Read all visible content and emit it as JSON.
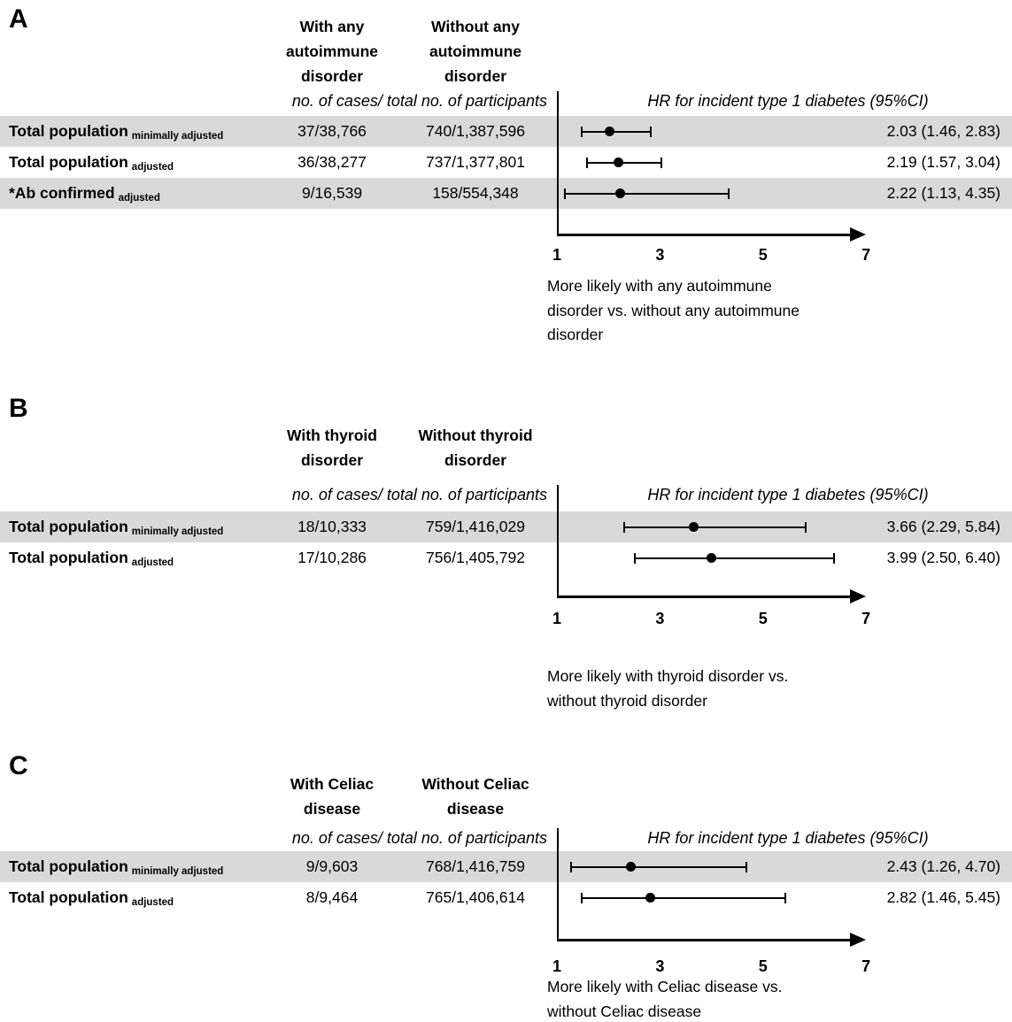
{
  "chart_data": {
    "type": "scatter",
    "subtype": "forest-plot",
    "x_axis": {
      "min": 1,
      "max": 7,
      "ticks": [
        "1",
        "3",
        "5",
        "7"
      ]
    },
    "colors": {
      "marker": "#000000",
      "shaded_row": "#d9d9d9",
      "text": "#000000"
    },
    "panels": [
      {
        "label": "A",
        "col_headers": [
          "With any\nautoimmune\ndisorder",
          "Without any\nautoimmune\ndisorder"
        ],
        "counts_header": "no. of cases/ total no. of participants",
        "hr_header": "HR for incident type 1 diabetes (95%CI)",
        "rows": [
          {
            "label": "Total population",
            "sub": "minimally adjusted",
            "cases_with": "37/38,766",
            "cases_without": "740/1,387,596",
            "hr": 2.03,
            "ci_low": 1.46,
            "ci_high": 2.83,
            "hr_text": "2.03 (1.46, 2.83)",
            "shaded": true
          },
          {
            "label": "Total population",
            "sub": "adjusted",
            "cases_with": "36/38,277",
            "cases_without": "737/1,377,801",
            "hr": 2.19,
            "ci_low": 1.57,
            "ci_high": 3.04,
            "hr_text": "2.19 (1.57, 3.04)",
            "shaded": false
          },
          {
            "label": "*Ab confirmed",
            "sub": "adjusted",
            "cases_with": "9/16,539",
            "cases_without": "158/554,348",
            "hr": 2.22,
            "ci_low": 1.13,
            "ci_high": 4.35,
            "hr_text": "2.22 (1.13, 4.35)",
            "shaded": true
          }
        ],
        "caption": "More likely with any autoimmune\ndisorder vs. without any autoimmune\ndisorder"
      },
      {
        "label": "B",
        "col_headers": [
          "With thyroid\ndisorder",
          "Without thyroid\ndisorder"
        ],
        "counts_header": "no. of cases/ total no. of participants",
        "hr_header": "HR for incident type 1 diabetes (95%CI)",
        "rows": [
          {
            "label": "Total population",
            "sub": "minimally adjusted",
            "cases_with": "18/10,333",
            "cases_without": "759/1,416,029",
            "hr": 3.66,
            "ci_low": 2.29,
            "ci_high": 5.84,
            "hr_text": "3.66 (2.29, 5.84)",
            "shaded": true
          },
          {
            "label": "Total population",
            "sub": "adjusted",
            "cases_with": "17/10,286",
            "cases_without": "756/1,405,792",
            "hr": 3.99,
            "ci_low": 2.5,
            "ci_high": 6.4,
            "hr_text": "3.99 (2.50, 6.40)",
            "shaded": false
          }
        ],
        "caption": "More likely with thyroid disorder vs.\nwithout thyroid disorder"
      },
      {
        "label": "C",
        "col_headers": [
          "With Celiac\ndisease",
          "Without Celiac\ndisease"
        ],
        "counts_header": "no. of cases/ total no. of participants",
        "hr_header": "HR for incident type 1 diabetes (95%CI)",
        "rows": [
          {
            "label": "Total population",
            "sub": "minimally adjusted",
            "cases_with": "9/9,603",
            "cases_without": "768/1,416,759",
            "hr": 2.43,
            "ci_low": 1.26,
            "ci_high": 4.7,
            "hr_text": "2.43 (1.26, 4.70)",
            "shaded": true
          },
          {
            "label": "Total population",
            "sub": "adjusted",
            "cases_with": "8/9,464",
            "cases_without": "765/1,406,614",
            "hr": 2.82,
            "ci_low": 1.46,
            "ci_high": 5.45,
            "hr_text": "2.82 (1.46, 5.45)",
            "shaded": false
          }
        ],
        "caption": "More likely with Celiac disease vs.\nwithout Celiac disease"
      }
    ]
  }
}
